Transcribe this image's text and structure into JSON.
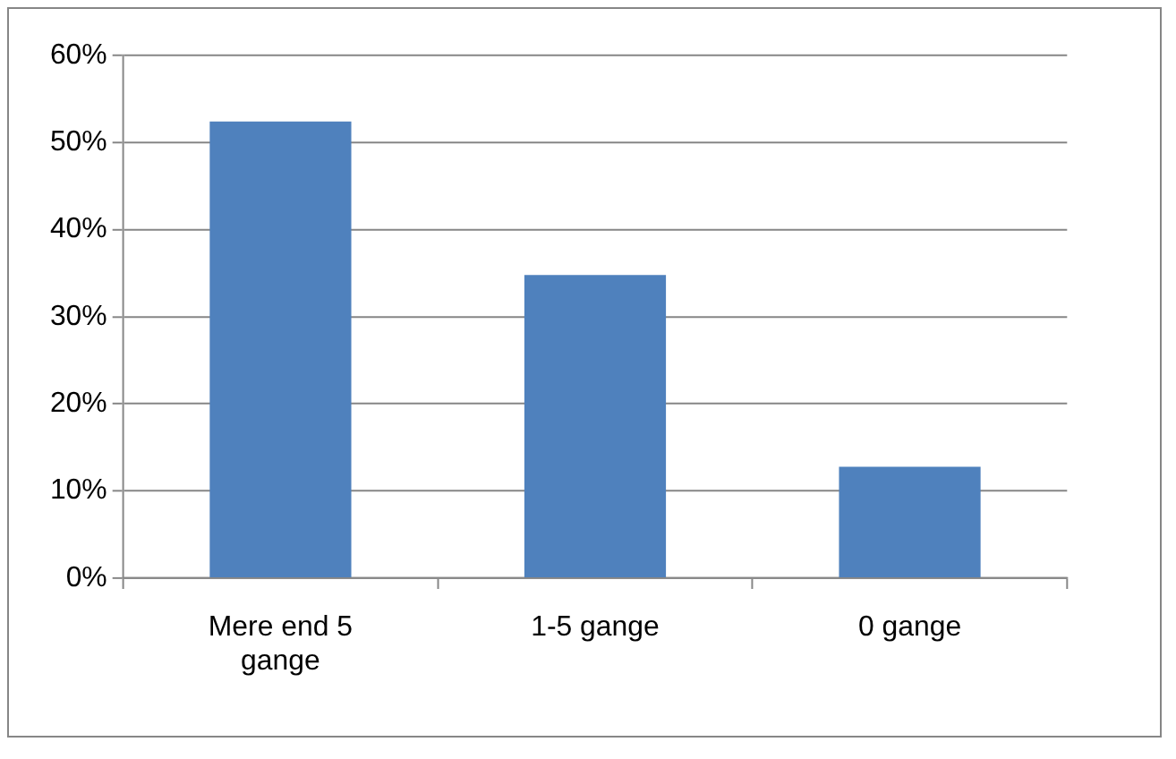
{
  "chart_data": {
    "type": "bar",
    "categories": [
      "Mere end 5 gange",
      "1-5 gange",
      "0 gange"
    ],
    "values": [
      52.4,
      34.8,
      12.8
    ],
    "color": "#4f81bd",
    "ylim": [
      0,
      60
    ],
    "yticks": [
      {
        "value": 0,
        "label": "0%"
      },
      {
        "value": 10,
        "label": "10%"
      },
      {
        "value": 20,
        "label": "20%"
      },
      {
        "value": 30,
        "label": "30%"
      },
      {
        "value": 40,
        "label": "40%"
      },
      {
        "value": 50,
        "label": "50%"
      },
      {
        "value": 60,
        "label": "60%"
      }
    ],
    "grid": "y",
    "legend": false
  }
}
